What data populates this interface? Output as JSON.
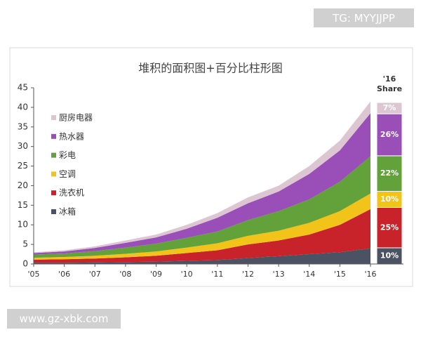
{
  "badge": "TG: MYYJJPP",
  "website": "www.gz-xbk.com",
  "chart_data": {
    "type": "stacked-area-share",
    "title": "堆积的面积图+百分比柱形图",
    "share_title_lines": [
      "'16",
      "Share"
    ],
    "categories": [
      "'05",
      "'06",
      "'07",
      "'08",
      "'09",
      "'10",
      "'11",
      "'12",
      "'13",
      "'14",
      "'15",
      "'16"
    ],
    "ylim": [
      0,
      45
    ],
    "yticks": [
      0,
      5,
      10,
      15,
      20,
      25,
      30,
      35,
      40,
      45
    ],
    "series": [
      {
        "name": "冰箱",
        "color": "#4b5263",
        "values": [
          0.3,
          0.3,
          0.4,
          0.5,
          0.6,
          0.8,
          1.0,
          1.5,
          2.0,
          2.5,
          3.0,
          4.0
        ],
        "share": 10,
        "share_label": "10%"
      },
      {
        "name": "洗衣机",
        "color": "#c8232a",
        "values": [
          0.8,
          0.9,
          1.0,
          1.2,
          1.5,
          2.0,
          2.5,
          3.5,
          4.0,
          5.0,
          7.0,
          10.0
        ],
        "share": 25,
        "share_label": "25%"
      },
      {
        "name": "空调",
        "color": "#f2c318",
        "values": [
          0.5,
          0.6,
          0.7,
          0.9,
          1.1,
          1.4,
          1.8,
          2.2,
          2.5,
          3.0,
          3.5,
          4.0
        ],
        "share": 10,
        "share_label": "10%"
      },
      {
        "name": "彩电",
        "color": "#63a23a",
        "values": [
          0.8,
          0.9,
          1.2,
          1.6,
          2.0,
          2.5,
          3.0,
          4.0,
          5.0,
          6.0,
          7.5,
          9.5
        ],
        "share": 22,
        "share_label": "22%"
      },
      {
        "name": "热水器",
        "color": "#9a4fb8",
        "values": [
          0.4,
          0.5,
          0.8,
          1.2,
          1.6,
          2.3,
          3.5,
          4.3,
          5.0,
          6.5,
          8.0,
          11.0
        ],
        "share": 26,
        "share_label": "26%"
      },
      {
        "name": "厨房电器",
        "color": "#dcc6d2",
        "values": [
          0.2,
          0.3,
          0.4,
          0.6,
          0.7,
          1.0,
          1.2,
          1.5,
          1.5,
          2.0,
          2.5,
          3.0
        ],
        "share": 7,
        "share_label": "7%"
      }
    ]
  }
}
